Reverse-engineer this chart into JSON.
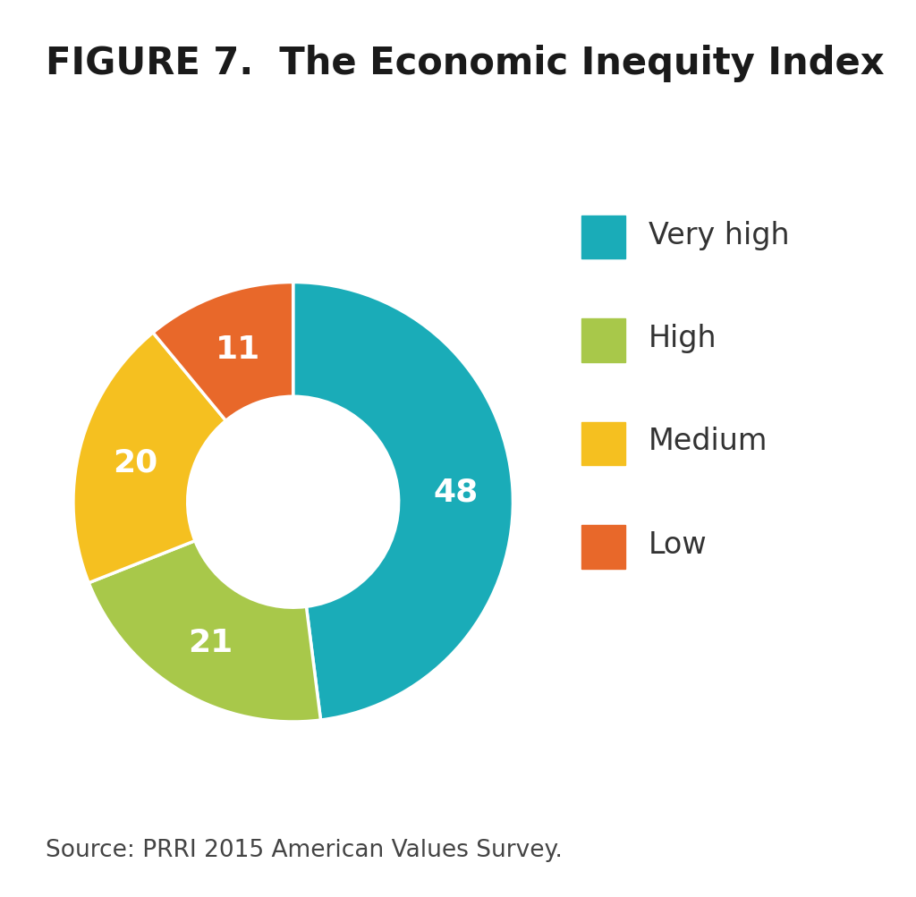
{
  "title": "FIGURE 7.  The Economic Inequity Index",
  "source_text": "Source: PRRI 2015 American Values Survey.",
  "slices": [
    48,
    21,
    20,
    11
  ],
  "labels": [
    "Very high",
    "High",
    "Medium",
    "Low"
  ],
  "colors": [
    "#1AACB8",
    "#A8C84A",
    "#F5C020",
    "#E8682A"
  ],
  "text_labels": [
    "48",
    "21",
    "20",
    "11"
  ],
  "text_color": "#FFFFFF",
  "title_fontsize": 30,
  "label_fontsize": 26,
  "legend_fontsize": 24,
  "source_fontsize": 19,
  "background_color": "#FFFFFF",
  "donut_width": 0.52,
  "start_angle": 90
}
